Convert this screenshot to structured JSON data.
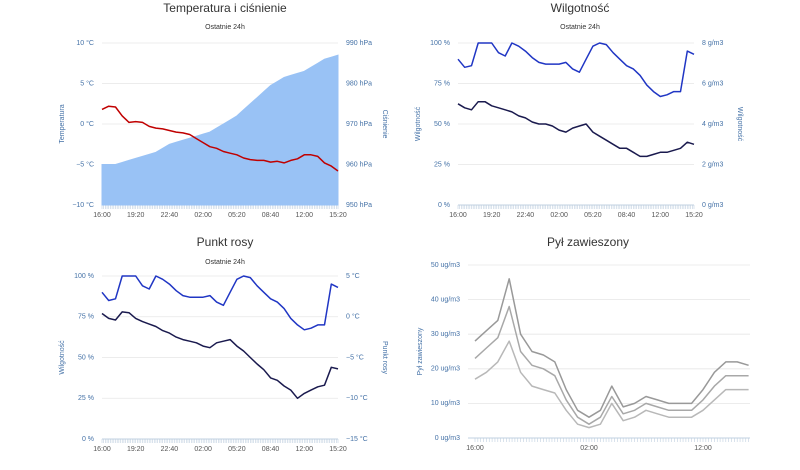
{
  "chart_data": [
    {
      "type": "line",
      "title": "Temperatura i ciśnienie",
      "subtitle": "Ostatnie 24h",
      "ylabel": "Temperatura",
      "y2label": "Ciśnienie",
      "categories": [
        "16:00",
        null,
        null,
        null,
        null,
        "19:20",
        null,
        null,
        null,
        null,
        "22:40",
        null,
        null,
        null,
        null,
        "02:00",
        null,
        null,
        null,
        null,
        "05:20",
        null,
        null,
        null,
        null,
        "08:40",
        null,
        null,
        null,
        null,
        "12:00",
        null,
        null,
        null,
        null,
        "15:20"
      ],
      "series": [
        {
          "type": "area",
          "axis": "y2",
          "color": "#99c2f5",
          "values": [
            960,
            960,
            960,
            960.5,
            961,
            961.5,
            962,
            962.5,
            963,
            964,
            965,
            965.5,
            966,
            966.5,
            967,
            967.5,
            968,
            969,
            970,
            971,
            972,
            973.5,
            975,
            976.5,
            978,
            979.5,
            980.5,
            981.5,
            982,
            982.5,
            983,
            984,
            985,
            986,
            986.5,
            987
          ]
        },
        {
          "type": "line",
          "axis": "y",
          "color": "#c00000",
          "values": [
            1.8,
            2.2,
            2.1,
            1.0,
            0.2,
            0.3,
            0.2,
            -0.3,
            -0.5,
            -0.6,
            -0.8,
            -1.0,
            -1.1,
            -1.3,
            -1.8,
            -2.3,
            -2.8,
            -3.0,
            -3.4,
            -3.6,
            -3.8,
            -4.2,
            -4.4,
            -4.5,
            -4.5,
            -4.7,
            -4.6,
            -4.8,
            -4.5,
            -4.3,
            -3.8,
            -3.8,
            -4.0,
            -4.8,
            -5.2,
            -5.8
          ]
        }
      ],
      "ylim": [
        -10,
        10
      ],
      "yticks": [
        {
          "value": -10,
          "label": "−10 °C"
        },
        {
          "value": -5,
          "label": "−5 °C"
        },
        {
          "value": 0,
          "label": "0 °C"
        },
        {
          "value": 5,
          "label": "5 °C"
        },
        {
          "value": 10,
          "label": "10 °C"
        }
      ],
      "y2lim": [
        950,
        990
      ],
      "y2ticks": [
        {
          "value": 950,
          "label": "950 hPa"
        },
        {
          "value": 960,
          "label": "960 hPa"
        },
        {
          "value": 970,
          "label": "970 hPa"
        },
        {
          "value": 980,
          "label": "980 hPa"
        },
        {
          "value": 990,
          "label": "990 hPa"
        }
      ],
      "grid": true
    },
    {
      "type": "line",
      "title": "Wilgotność",
      "subtitle": "Ostatnie 24h",
      "ylabel": "Wilgotność",
      "y2label": "Wilgotność",
      "categories": [
        "16:00",
        null,
        null,
        null,
        null,
        "19:20",
        null,
        null,
        null,
        null,
        "22:40",
        null,
        null,
        null,
        null,
        "02:00",
        null,
        null,
        null,
        null,
        "05:20",
        null,
        null,
        null,
        null,
        "08:40",
        null,
        null,
        null,
        null,
        "12:00",
        null,
        null,
        null,
        null,
        "15:20"
      ],
      "series": [
        {
          "type": "line",
          "axis": "y",
          "color": "#2036c4",
          "values": [
            90,
            85,
            86,
            100,
            100,
            100,
            94,
            92,
            100,
            98,
            95,
            91,
            88,
            87,
            87,
            87,
            88,
            84,
            82,
            90,
            98,
            100,
            99,
            94,
            90,
            86,
            84,
            80,
            74,
            70,
            67,
            68,
            70,
            70,
            95,
            93
          ]
        },
        {
          "type": "line",
          "axis": "y2",
          "color": "#1a1a4e",
          "values": [
            5.0,
            4.8,
            4.7,
            5.1,
            5.1,
            4.9,
            4.8,
            4.7,
            4.6,
            4.4,
            4.3,
            4.1,
            4.0,
            4.0,
            3.9,
            3.7,
            3.6,
            3.8,
            3.9,
            4.0,
            3.6,
            3.4,
            3.2,
            3.0,
            2.8,
            2.8,
            2.6,
            2.4,
            2.4,
            2.5,
            2.6,
            2.6,
            2.7,
            2.8,
            3.1,
            3.0
          ]
        }
      ],
      "ylim": [
        0,
        100
      ],
      "yticks": [
        {
          "value": 0,
          "label": "0 %"
        },
        {
          "value": 25,
          "label": "25 %"
        },
        {
          "value": 50,
          "label": "50 %"
        },
        {
          "value": 75,
          "label": "75 %"
        },
        {
          "value": 100,
          "label": "100 %"
        }
      ],
      "y2lim": [
        0,
        8
      ],
      "y2ticks": [
        {
          "value": 0,
          "label": "0 g/m3"
        },
        {
          "value": 2,
          "label": "2 g/m3"
        },
        {
          "value": 4,
          "label": "4 g/m3"
        },
        {
          "value": 6,
          "label": "6 g/m3"
        },
        {
          "value": 8,
          "label": "8 g/m3"
        }
      ],
      "grid": true
    },
    {
      "type": "line",
      "title": "Punkt rosy",
      "subtitle": "Ostatnie 24h",
      "ylabel": "Wilgotność",
      "y2label": "Punkt rosy",
      "categories": [
        "16:00",
        null,
        null,
        null,
        null,
        "19:20",
        null,
        null,
        null,
        null,
        "22:40",
        null,
        null,
        null,
        null,
        "02:00",
        null,
        null,
        null,
        null,
        "05:20",
        null,
        null,
        null,
        null,
        "08:40",
        null,
        null,
        null,
        null,
        "12:00",
        null,
        null,
        null,
        null,
        "15:20"
      ],
      "series": [
        {
          "type": "line",
          "axis": "y",
          "color": "#2036c4",
          "values": [
            90,
            85,
            86,
            100,
            100,
            100,
            94,
            92,
            100,
            98,
            95,
            91,
            88,
            87,
            87,
            87,
            88,
            84,
            82,
            90,
            98,
            100,
            99,
            94,
            90,
            86,
            84,
            80,
            74,
            70,
            67,
            68,
            70,
            70,
            95,
            93
          ]
        },
        {
          "type": "line",
          "axis": "y2",
          "color": "#1a1a4e",
          "values": [
            0.4,
            -0.2,
            -0.4,
            0.6,
            0.5,
            -0.2,
            -0.6,
            -0.9,
            -1.2,
            -1.7,
            -2.0,
            -2.5,
            -2.8,
            -3.0,
            -3.2,
            -3.6,
            -3.8,
            -3.2,
            -3.0,
            -2.8,
            -3.6,
            -4.2,
            -5.0,
            -5.8,
            -6.5,
            -7.5,
            -7.8,
            -8.5,
            -9.0,
            -10.0,
            -9.4,
            -9.0,
            -8.6,
            -8.4,
            -6.2,
            -6.4
          ]
        }
      ],
      "ylim": [
        0,
        100
      ],
      "yticks": [
        {
          "value": 0,
          "label": "0 %"
        },
        {
          "value": 25,
          "label": "25 %"
        },
        {
          "value": 50,
          "label": "50 %"
        },
        {
          "value": 75,
          "label": "75 %"
        },
        {
          "value": 100,
          "label": "100 %"
        }
      ],
      "y2lim": [
        -15,
        5
      ],
      "y2ticks": [
        {
          "value": -15,
          "label": "−15 °C"
        },
        {
          "value": -10,
          "label": "−10 °C"
        },
        {
          "value": -5,
          "label": "−5 °C"
        },
        {
          "value": 0,
          "label": "0 °C"
        },
        {
          "value": 5,
          "label": "5 °C"
        }
      ],
      "grid": true
    },
    {
      "type": "line",
      "title": "Pył zawieszony",
      "ylabel": "Pył zawieszony",
      "categories": [
        "16:00",
        null,
        null,
        null,
        null,
        null,
        null,
        null,
        null,
        null,
        "02:00",
        null,
        null,
        null,
        null,
        null,
        null,
        null,
        null,
        null,
        "12:00",
        null,
        null,
        null,
        null
      ],
      "series": [
        {
          "type": "line",
          "axis": "y",
          "color": "#999999",
          "values": [
            28,
            31,
            34,
            46,
            30,
            25,
            24,
            22,
            14,
            8,
            6,
            8,
            15,
            9,
            10,
            12,
            11,
            10,
            10,
            10,
            14,
            19,
            22,
            22,
            21
          ]
        },
        {
          "type": "line",
          "axis": "y",
          "color": "#a8a8a8",
          "values": [
            23,
            26,
            29,
            38,
            25,
            21,
            20,
            18,
            11,
            6,
            4,
            6,
            12,
            7,
            8,
            10,
            9,
            8,
            8,
            8,
            11,
            15,
            18,
            18,
            18
          ]
        },
        {
          "type": "line",
          "axis": "y",
          "color": "#b8b8b8",
          "values": [
            17,
            19,
            22,
            28,
            19,
            15,
            14,
            13,
            8,
            4,
            3,
            4,
            10,
            5,
            6,
            8,
            7,
            6,
            6,
            6,
            8,
            11,
            14,
            14,
            14
          ]
        }
      ],
      "ylim": [
        0,
        50
      ],
      "yticks": [
        {
          "value": 0,
          "label": "0 ug/m3"
        },
        {
          "value": 10,
          "label": "10 ug/m3"
        },
        {
          "value": 20,
          "label": "20 ug/m3"
        },
        {
          "value": 30,
          "label": "30 ug/m3"
        },
        {
          "value": 40,
          "label": "40 ug/m3"
        },
        {
          "value": 50,
          "label": "50 ug/m3"
        }
      ],
      "grid": true
    }
  ]
}
